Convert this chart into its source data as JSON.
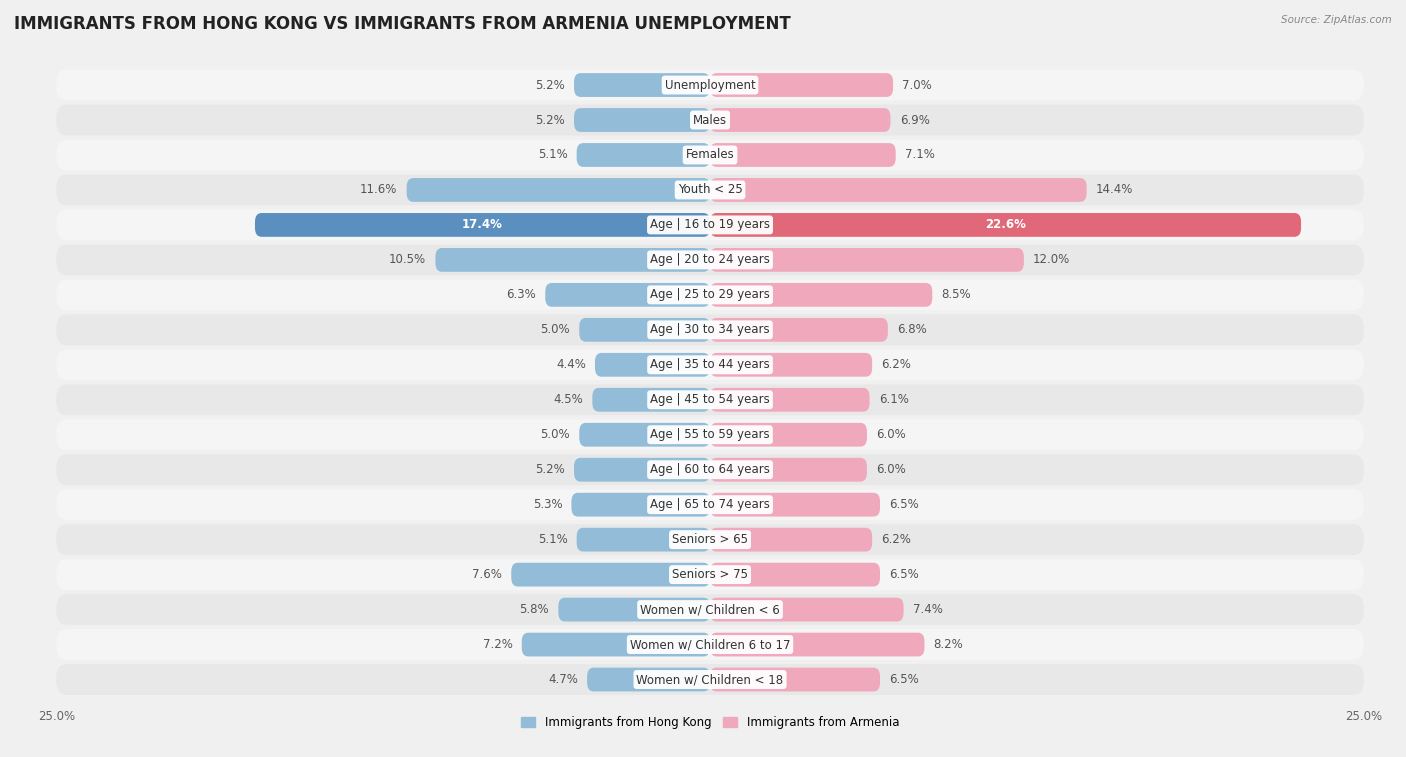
{
  "title": "IMMIGRANTS FROM HONG KONG VS IMMIGRANTS FROM ARMENIA UNEMPLOYMENT",
  "source": "Source: ZipAtlas.com",
  "categories": [
    "Unemployment",
    "Males",
    "Females",
    "Youth < 25",
    "Age | 16 to 19 years",
    "Age | 20 to 24 years",
    "Age | 25 to 29 years",
    "Age | 30 to 34 years",
    "Age | 35 to 44 years",
    "Age | 45 to 54 years",
    "Age | 55 to 59 years",
    "Age | 60 to 64 years",
    "Age | 65 to 74 years",
    "Seniors > 65",
    "Seniors > 75",
    "Women w/ Children < 6",
    "Women w/ Children 6 to 17",
    "Women w/ Children < 18"
  ],
  "hong_kong": [
    5.2,
    5.2,
    5.1,
    11.6,
    17.4,
    10.5,
    6.3,
    5.0,
    4.4,
    4.5,
    5.0,
    5.2,
    5.3,
    5.1,
    7.6,
    5.8,
    7.2,
    4.7
  ],
  "armenia": [
    7.0,
    6.9,
    7.1,
    14.4,
    22.6,
    12.0,
    8.5,
    6.8,
    6.2,
    6.1,
    6.0,
    6.0,
    6.5,
    6.2,
    6.5,
    7.4,
    8.2,
    6.5
  ],
  "hong_kong_color": "#92bcd8",
  "armenia_color": "#f0a8bc",
  "hong_kong_highlight_color": "#5a8fc0",
  "armenia_highlight_color": "#e06878",
  "background_light": "#f5f5f5",
  "background_dark": "#e8e8e8",
  "fig_background": "#f0f0f0",
  "axis_max": 25.0,
  "legend_hk": "Immigrants from Hong Kong",
  "legend_arm": "Immigrants from Armenia",
  "title_fontsize": 12,
  "label_fontsize": 8.5,
  "value_fontsize": 8.5,
  "highlight_idx": 4
}
